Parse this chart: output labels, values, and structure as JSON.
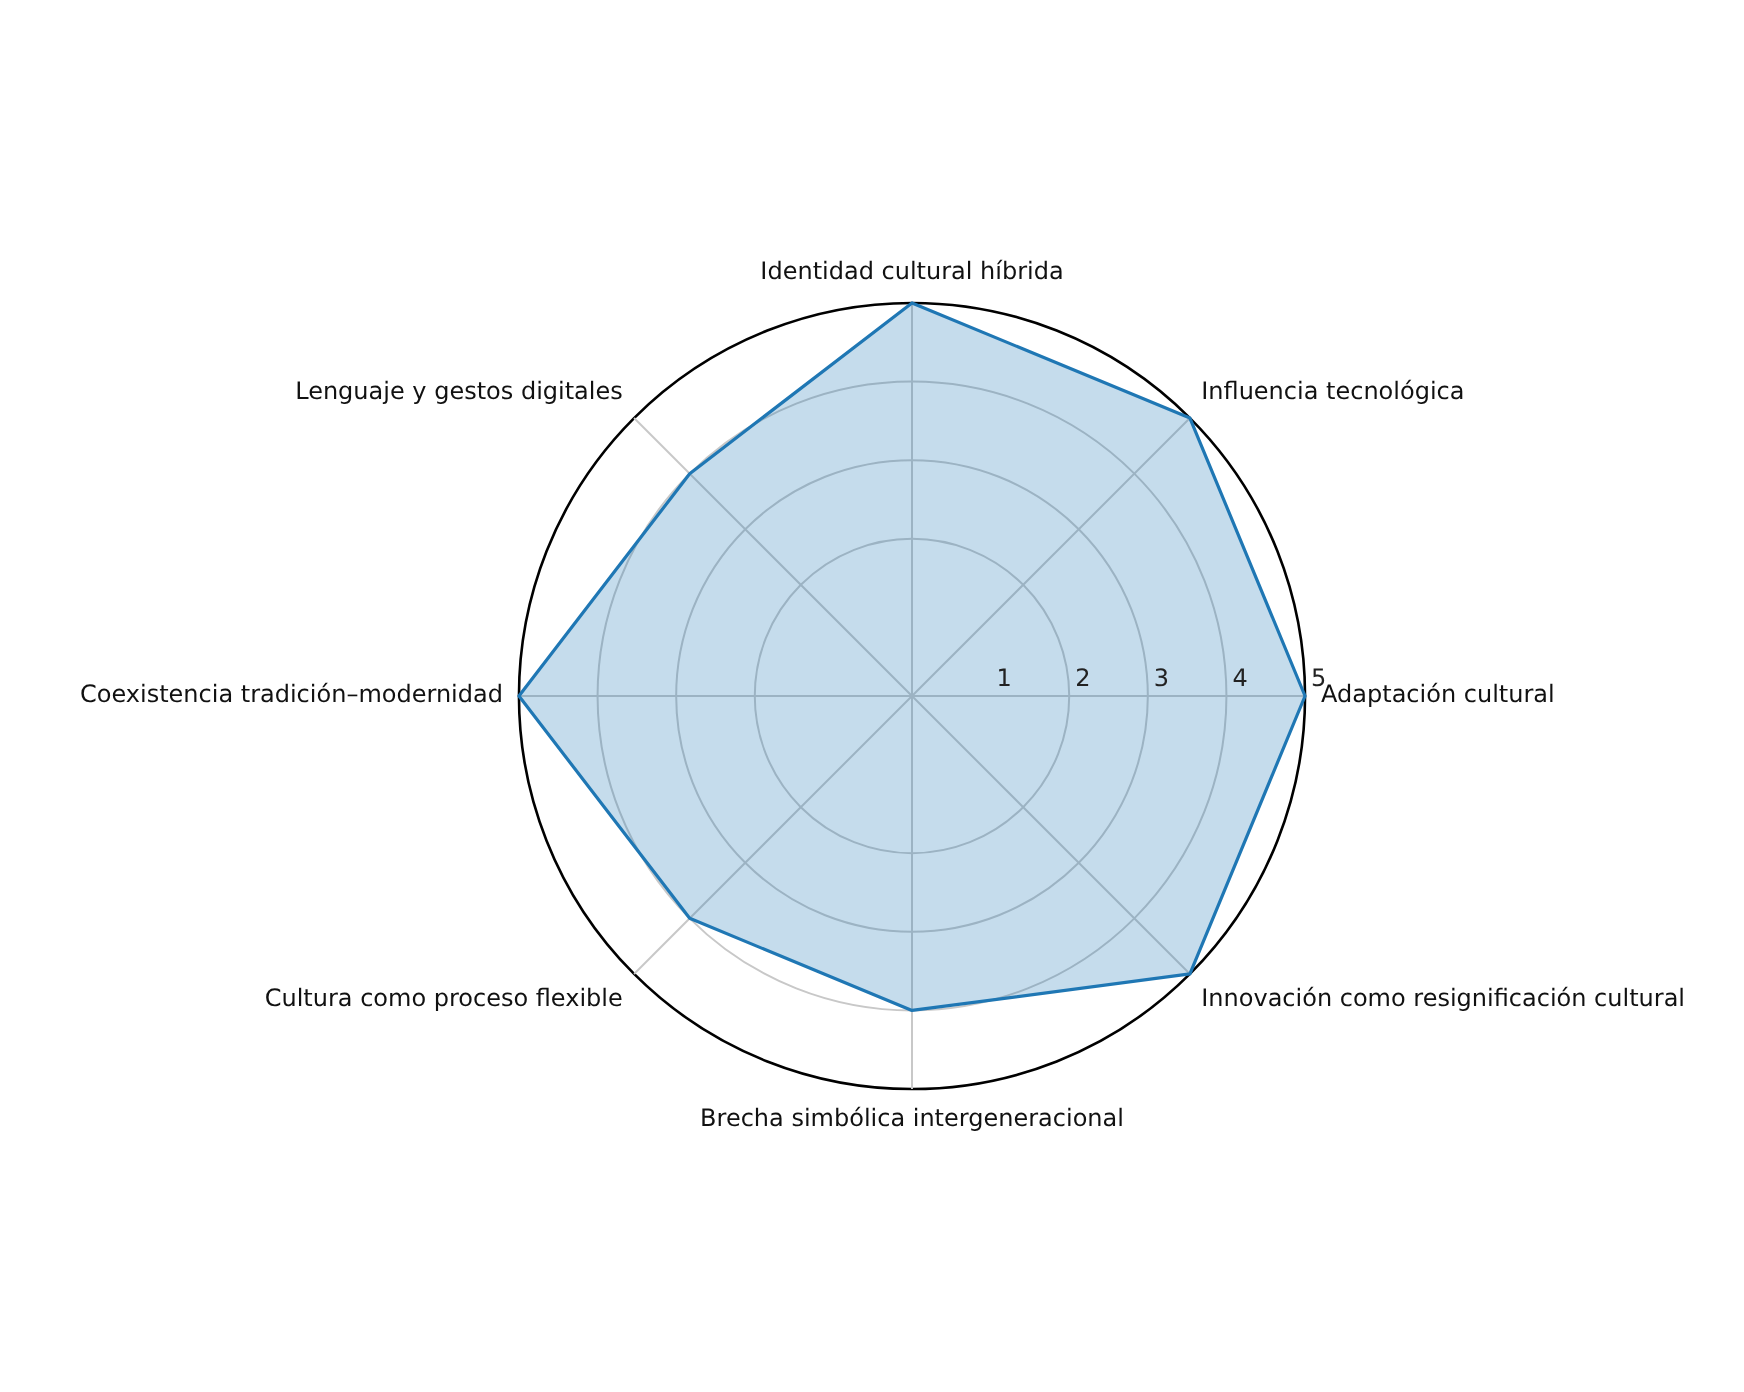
{
  "chart_data": {
    "type": "radar",
    "categories": [
      "Identidad cultural híbrida",
      "Influencia tecnológica",
      "Adaptación cultural",
      "Innovación como resignificación cultural",
      "Brecha simbólica intergeneracional",
      "Cultura como proceso flexible",
      "Coexistencia tradición–modernidad",
      "Lenguaje y gestos digitales"
    ],
    "series": [
      {
        "color": "#1f77b4",
        "values": [
          5,
          5,
          5,
          5,
          4,
          4,
          5,
          4
        ]
      }
    ],
    "ylim": [
      0,
      5
    ],
    "yticks": [
      1,
      2,
      3,
      4,
      5
    ],
    "grid": true,
    "legend": false,
    "marker": "none",
    "line_style": "solid"
  }
}
